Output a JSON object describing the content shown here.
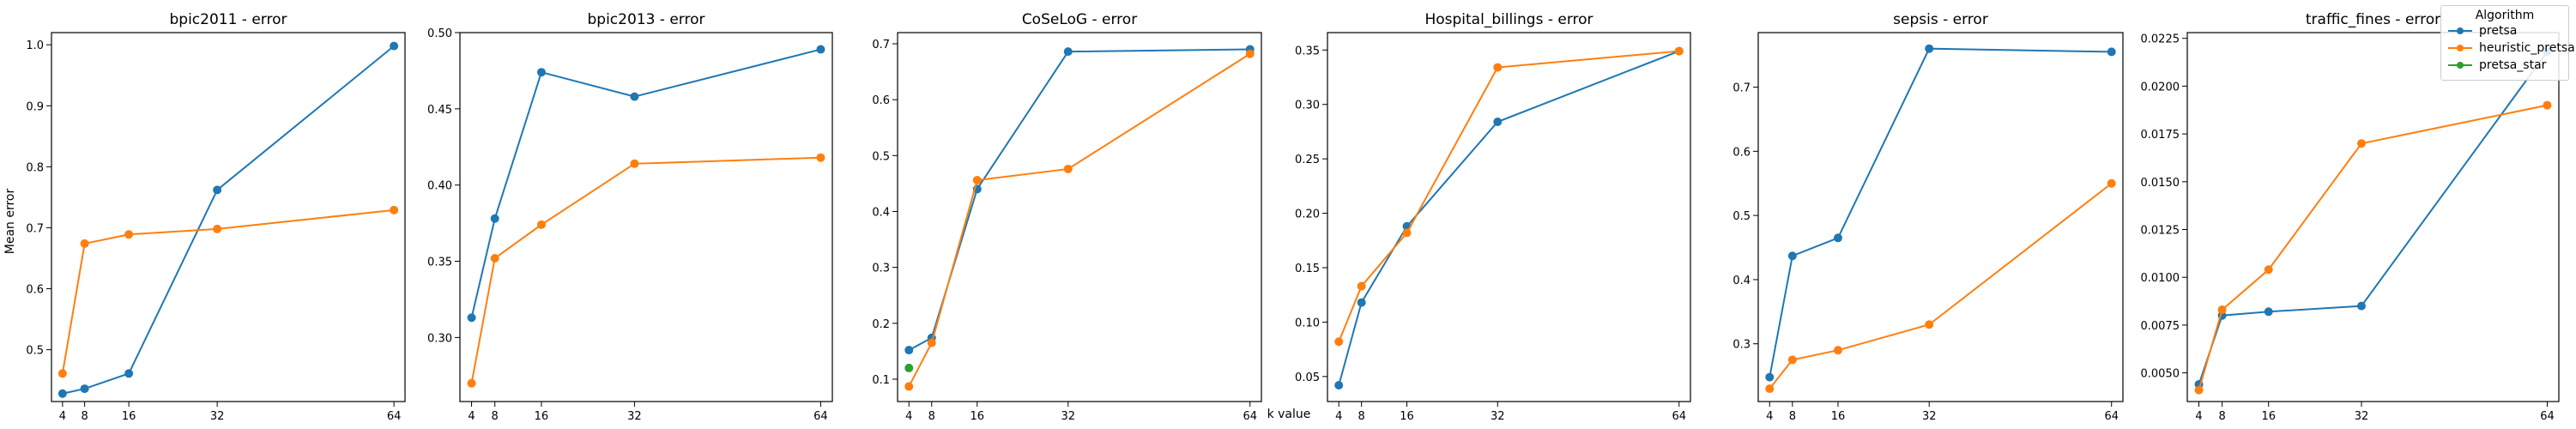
{
  "figure": {
    "ylabel": "Mean error",
    "xlabel": "k value",
    "legend": {
      "title": "Algorithm",
      "placement": "upper-right"
    }
  },
  "colors": {
    "pretsa": "#1f77b4",
    "heuristic_pretsa": "#ff7f0e",
    "pretsa_star": "#2ca02c"
  },
  "chart_data": [
    {
      "type": "line",
      "title": "bpic2011 - error",
      "x": [
        4,
        8,
        16,
        32,
        64
      ],
      "xticks": [
        "4",
        "8",
        "16",
        "32",
        "64"
      ],
      "ylim": [
        0.415,
        1.02
      ],
      "yticks": [
        "0.5",
        "0.6",
        "0.7",
        "0.8",
        "0.9",
        "1.0"
      ],
      "ytick_values": [
        0.5,
        0.6,
        0.7,
        0.8,
        0.9,
        1.0
      ],
      "series": [
        {
          "name": "pretsa",
          "x": [
            4,
            8,
            16,
            32,
            64
          ],
          "values": [
            0.428,
            0.436,
            0.461,
            0.762,
            0.998
          ]
        },
        {
          "name": "heuristic_pretsa",
          "x": [
            4,
            8,
            16,
            32,
            64
          ],
          "values": [
            0.461,
            0.674,
            0.689,
            0.698,
            0.729
          ]
        }
      ]
    },
    {
      "type": "line",
      "title": "bpic2013 - error",
      "x": [
        4,
        8,
        16,
        32,
        64
      ],
      "xticks": [
        "4",
        "8",
        "16",
        "32",
        "64"
      ],
      "ylim": [
        0.258,
        0.5
      ],
      "yticks": [
        "0.30",
        "0.35",
        "0.40",
        "0.45",
        "0.50"
      ],
      "ytick_values": [
        0.3,
        0.35,
        0.4,
        0.45,
        0.5
      ],
      "series": [
        {
          "name": "pretsa",
          "x": [
            4,
            8,
            16,
            32,
            64
          ],
          "values": [
            0.313,
            0.378,
            0.474,
            0.458,
            0.489
          ]
        },
        {
          "name": "heuristic_pretsa",
          "x": [
            4,
            8,
            16,
            32,
            64
          ],
          "values": [
            0.27,
            0.352,
            0.374,
            0.414,
            0.418
          ]
        }
      ]
    },
    {
      "type": "line",
      "title": "CoSeLoG - error",
      "x": [
        4,
        8,
        16,
        32,
        64
      ],
      "xticks": [
        "4",
        "8",
        "16",
        "32",
        "64"
      ],
      "ylim": [
        0.06,
        0.72
      ],
      "yticks": [
        "0.1",
        "0.2",
        "0.3",
        "0.4",
        "0.5",
        "0.6",
        "0.7"
      ],
      "ytick_values": [
        0.1,
        0.2,
        0.3,
        0.4,
        0.5,
        0.6,
        0.7
      ],
      "series": [
        {
          "name": "pretsa",
          "x": [
            4,
            8,
            16,
            32,
            64
          ],
          "values": [
            0.152,
            0.174,
            0.44,
            0.686,
            0.69
          ]
        },
        {
          "name": "heuristic_pretsa",
          "x": [
            4,
            8,
            16,
            32,
            64
          ],
          "values": [
            0.087,
            0.165,
            0.456,
            0.476,
            0.682
          ]
        },
        {
          "name": "pretsa_star",
          "x": [
            4
          ],
          "values": [
            0.12
          ]
        }
      ]
    },
    {
      "type": "line",
      "title": "Hospital_billings - error",
      "x": [
        4,
        8,
        16,
        32,
        64
      ],
      "xticks": [
        "4",
        "8",
        "16",
        "32",
        "64"
      ],
      "ylim": [
        0.027,
        0.366
      ],
      "yticks": [
        "0.05",
        "0.10",
        "0.15",
        "0.20",
        "0.25",
        "0.30",
        "0.35"
      ],
      "ytick_values": [
        0.05,
        0.1,
        0.15,
        0.2,
        0.25,
        0.3,
        0.35
      ],
      "series": [
        {
          "name": "pretsa",
          "x": [
            4,
            8,
            16,
            32,
            64
          ],
          "values": [
            0.042,
            0.118,
            0.188,
            0.284,
            0.349
          ]
        },
        {
          "name": "heuristic_pretsa",
          "x": [
            4,
            8,
            16,
            32,
            64
          ],
          "values": [
            0.082,
            0.133,
            0.182,
            0.334,
            0.349
          ]
        }
      ]
    },
    {
      "type": "line",
      "title": "sepsis - error",
      "x": [
        4,
        8,
        16,
        32,
        64
      ],
      "xticks": [
        "4",
        "8",
        "16",
        "32",
        "64"
      ],
      "ylim": [
        0.21,
        0.785
      ],
      "yticks": [
        "0.3",
        "0.4",
        "0.5",
        "0.6",
        "0.7"
      ],
      "ytick_values": [
        0.3,
        0.4,
        0.5,
        0.6,
        0.7
      ],
      "series": [
        {
          "name": "pretsa",
          "x": [
            4,
            8,
            16,
            32,
            64
          ],
          "values": [
            0.248,
            0.437,
            0.465,
            0.76,
            0.755
          ]
        },
        {
          "name": "heuristic_pretsa",
          "x": [
            4,
            8,
            16,
            32,
            64
          ],
          "values": [
            0.23,
            0.275,
            0.29,
            0.33,
            0.55
          ]
        }
      ]
    },
    {
      "type": "line",
      "title": "traffic_fines - error",
      "x": [
        4,
        8,
        16,
        32,
        64
      ],
      "xticks": [
        "4",
        "8",
        "16",
        "32",
        "64"
      ],
      "ylim": [
        0.0035,
        0.0228
      ],
      "yticks": [
        "0.0050",
        "0.0075",
        "0.0100",
        "0.0125",
        "0.0150",
        "0.0175",
        "0.0200",
        "0.0225"
      ],
      "ytick_values": [
        0.005,
        0.0075,
        0.01,
        0.0125,
        0.015,
        0.0175,
        0.02,
        0.0225
      ],
      "series": [
        {
          "name": "pretsa",
          "x": [
            4,
            8,
            16,
            32,
            64
          ],
          "values": [
            0.0044,
            0.008,
            0.0082,
            0.0085,
            0.0218
          ]
        },
        {
          "name": "heuristic_pretsa",
          "x": [
            4,
            8,
            16,
            32,
            64
          ],
          "values": [
            0.0041,
            0.0083,
            0.0104,
            0.017,
            0.019
          ]
        }
      ]
    }
  ]
}
